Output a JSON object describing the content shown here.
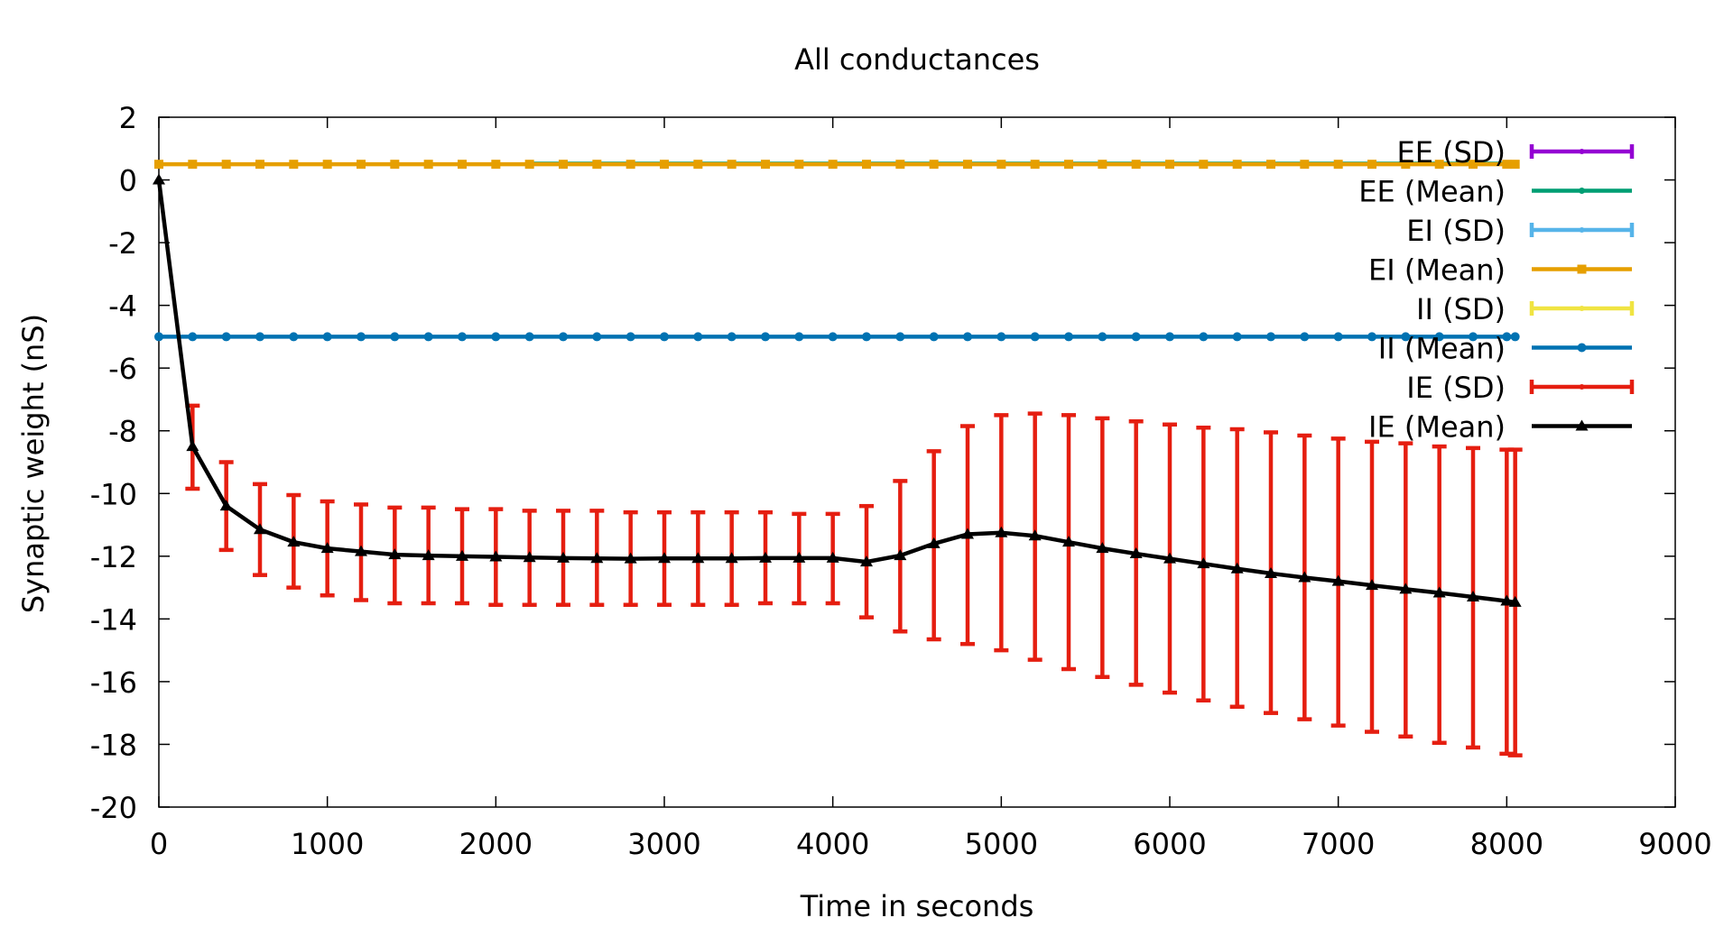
{
  "chart_data": {
    "type": "line",
    "title": "All conductances",
    "xlabel": "Time in seconds",
    "ylabel": "Synaptic weight (nS)",
    "xlim": [
      0,
      9000
    ],
    "ylim": [
      -20,
      2
    ],
    "xticks": [
      "0",
      "1000",
      "2000",
      "3000",
      "4000",
      "5000",
      "6000",
      "7000",
      "8000",
      "9000"
    ],
    "yticks": [
      "2",
      "0",
      "-2",
      "-4",
      "-6",
      "-8",
      "-10",
      "-12",
      "-14",
      "-16",
      "-18",
      "-20"
    ],
    "grid": false,
    "legend_position": "top-right",
    "x": [
      0,
      200,
      400,
      600,
      800,
      1000,
      1200,
      1400,
      1600,
      1800,
      2000,
      2200,
      2400,
      2600,
      2800,
      3000,
      3200,
      3400,
      3600,
      3800,
      4000,
      4200,
      4400,
      4600,
      4800,
      5000,
      5200,
      5400,
      5600,
      5800,
      6000,
      6200,
      6400,
      6600,
      6800,
      7000,
      7200,
      7400,
      7600,
      7800,
      8000,
      8050
    ],
    "series": [
      {
        "name": "EE (SD)",
        "color": "#9400d3",
        "style": "errorbar",
        "constant": 0.52,
        "from_x": 2200,
        "marker": "none"
      },
      {
        "name": "EE (Mean)",
        "color": "#009e73",
        "style": "line",
        "constant": 0.52,
        "from_x": 2200,
        "marker": "dot"
      },
      {
        "name": "EI (SD)",
        "color": "#56b4e9",
        "style": "errorbar",
        "constant": 0.5,
        "marker": "none"
      },
      {
        "name": "EI (Mean)",
        "color": "#e69f00",
        "style": "line",
        "constant": 0.5,
        "marker": "square"
      },
      {
        "name": "II (SD)",
        "color": "#f0e442",
        "style": "errorbar",
        "constant": -5.0,
        "marker": "none"
      },
      {
        "name": "II (Mean)",
        "color": "#0072b2",
        "style": "line",
        "constant": -5.0,
        "marker": "circle"
      },
      {
        "name": "IE (SD)",
        "color": "#e51e10",
        "style": "errorbar",
        "low": [
          0.0,
          -9.85,
          -11.8,
          -12.6,
          -13.0,
          -13.25,
          -13.4,
          -13.5,
          -13.5,
          -13.5,
          -13.55,
          -13.55,
          -13.55,
          -13.55,
          -13.55,
          -13.55,
          -13.55,
          -13.55,
          -13.5,
          -13.5,
          -13.5,
          -13.95,
          -14.4,
          -14.65,
          -14.8,
          -15.0,
          -15.3,
          -15.6,
          -15.85,
          -16.1,
          -16.35,
          -16.6,
          -16.8,
          -17.0,
          -17.2,
          -17.4,
          -17.6,
          -17.75,
          -17.95,
          -18.1,
          -18.3,
          -18.35
        ],
        "high": [
          0.0,
          -7.2,
          -9.0,
          -9.7,
          -10.05,
          -10.25,
          -10.35,
          -10.45,
          -10.45,
          -10.5,
          -10.5,
          -10.55,
          -10.55,
          -10.55,
          -10.6,
          -10.6,
          -10.6,
          -10.6,
          -10.6,
          -10.65,
          -10.65,
          -10.4,
          -9.6,
          -8.65,
          -7.85,
          -7.5,
          -7.45,
          -7.5,
          -7.6,
          -7.7,
          -7.8,
          -7.9,
          -7.95,
          -8.05,
          -8.15,
          -8.25,
          -8.35,
          -8.4,
          -8.5,
          -8.55,
          -8.6,
          -8.6
        ]
      },
      {
        "name": "IE (Mean)",
        "color": "#000000",
        "style": "line",
        "marker": "triangle",
        "values": [
          0.0,
          -8.5,
          -10.4,
          -11.15,
          -11.55,
          -11.75,
          -11.85,
          -11.95,
          -11.98,
          -12.0,
          -12.02,
          -12.04,
          -12.06,
          -12.07,
          -12.08,
          -12.07,
          -12.07,
          -12.07,
          -12.06,
          -12.06,
          -12.06,
          -12.18,
          -11.98,
          -11.6,
          -11.3,
          -11.25,
          -11.35,
          -11.55,
          -11.75,
          -11.92,
          -12.08,
          -12.24,
          -12.4,
          -12.55,
          -12.68,
          -12.8,
          -12.93,
          -13.05,
          -13.17,
          -13.3,
          -13.43,
          -13.47
        ]
      }
    ]
  }
}
